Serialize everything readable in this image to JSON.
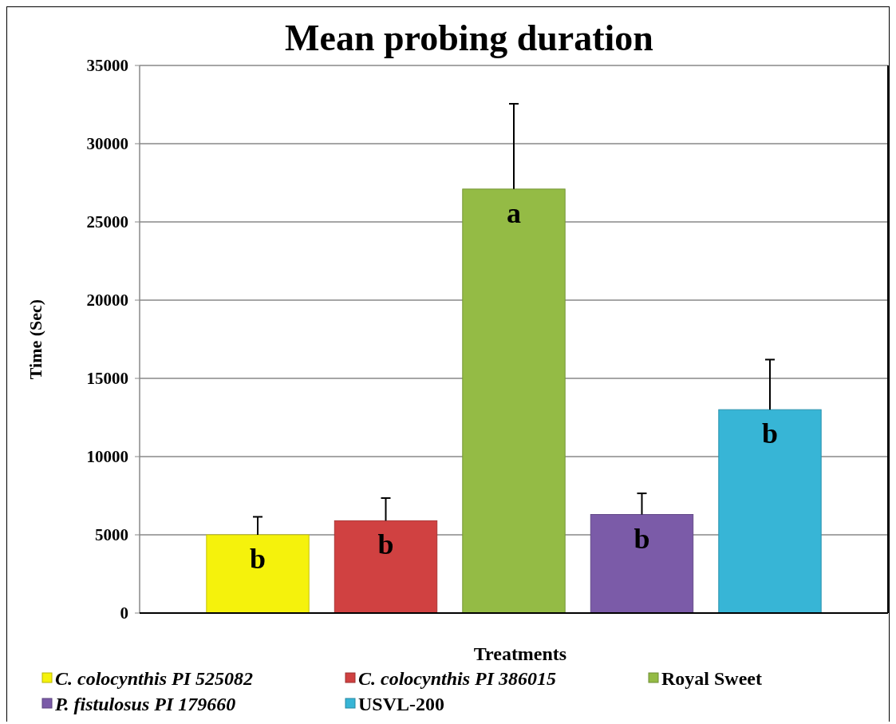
{
  "chart_data": {
    "type": "bar",
    "title": "Mean probing duration",
    "xlabel": "Treatments",
    "ylabel": "Time (Sec)",
    "categories": [
      null
    ],
    "series": [
      {
        "name": "C. colocynthis PI 525082",
        "color": "#f5f20c",
        "values": [
          5000
        ],
        "errors": [
          [
            5000,
            6150
          ]
        ],
        "value_labels": [
          "b"
        ]
      },
      {
        "name": "C. colocynthis PI 386015",
        "color": "#d04141",
        "values": [
          5900
        ],
        "errors": [
          [
            5900,
            7350
          ]
        ],
        "value_labels": [
          "b"
        ]
      },
      {
        "name": "Royal Sweet",
        "color": "#94bb45",
        "values": [
          27100
        ],
        "errors": [
          [
            27100,
            32550
          ]
        ],
        "value_labels": [
          "a"
        ]
      },
      {
        "name": "P. fistulosus PI 179660",
        "color": "#7b5ba8",
        "values": [
          6300
        ],
        "errors": [
          [
            6300,
            7650
          ]
        ],
        "value_labels": [
          "b"
        ]
      },
      {
        "name": "USVL-200",
        "color": "#37b5d6",
        "values": [
          13000
        ],
        "errors": [
          [
            13000,
            16200
          ]
        ],
        "value_labels": [
          "b"
        ]
      }
    ],
    "ylim": [
      0,
      35000
    ],
    "yticks": [
      0,
      5000,
      10000,
      15000,
      20000,
      25000,
      30000,
      35000
    ],
    "grid": "y",
    "legend": "bottom"
  }
}
